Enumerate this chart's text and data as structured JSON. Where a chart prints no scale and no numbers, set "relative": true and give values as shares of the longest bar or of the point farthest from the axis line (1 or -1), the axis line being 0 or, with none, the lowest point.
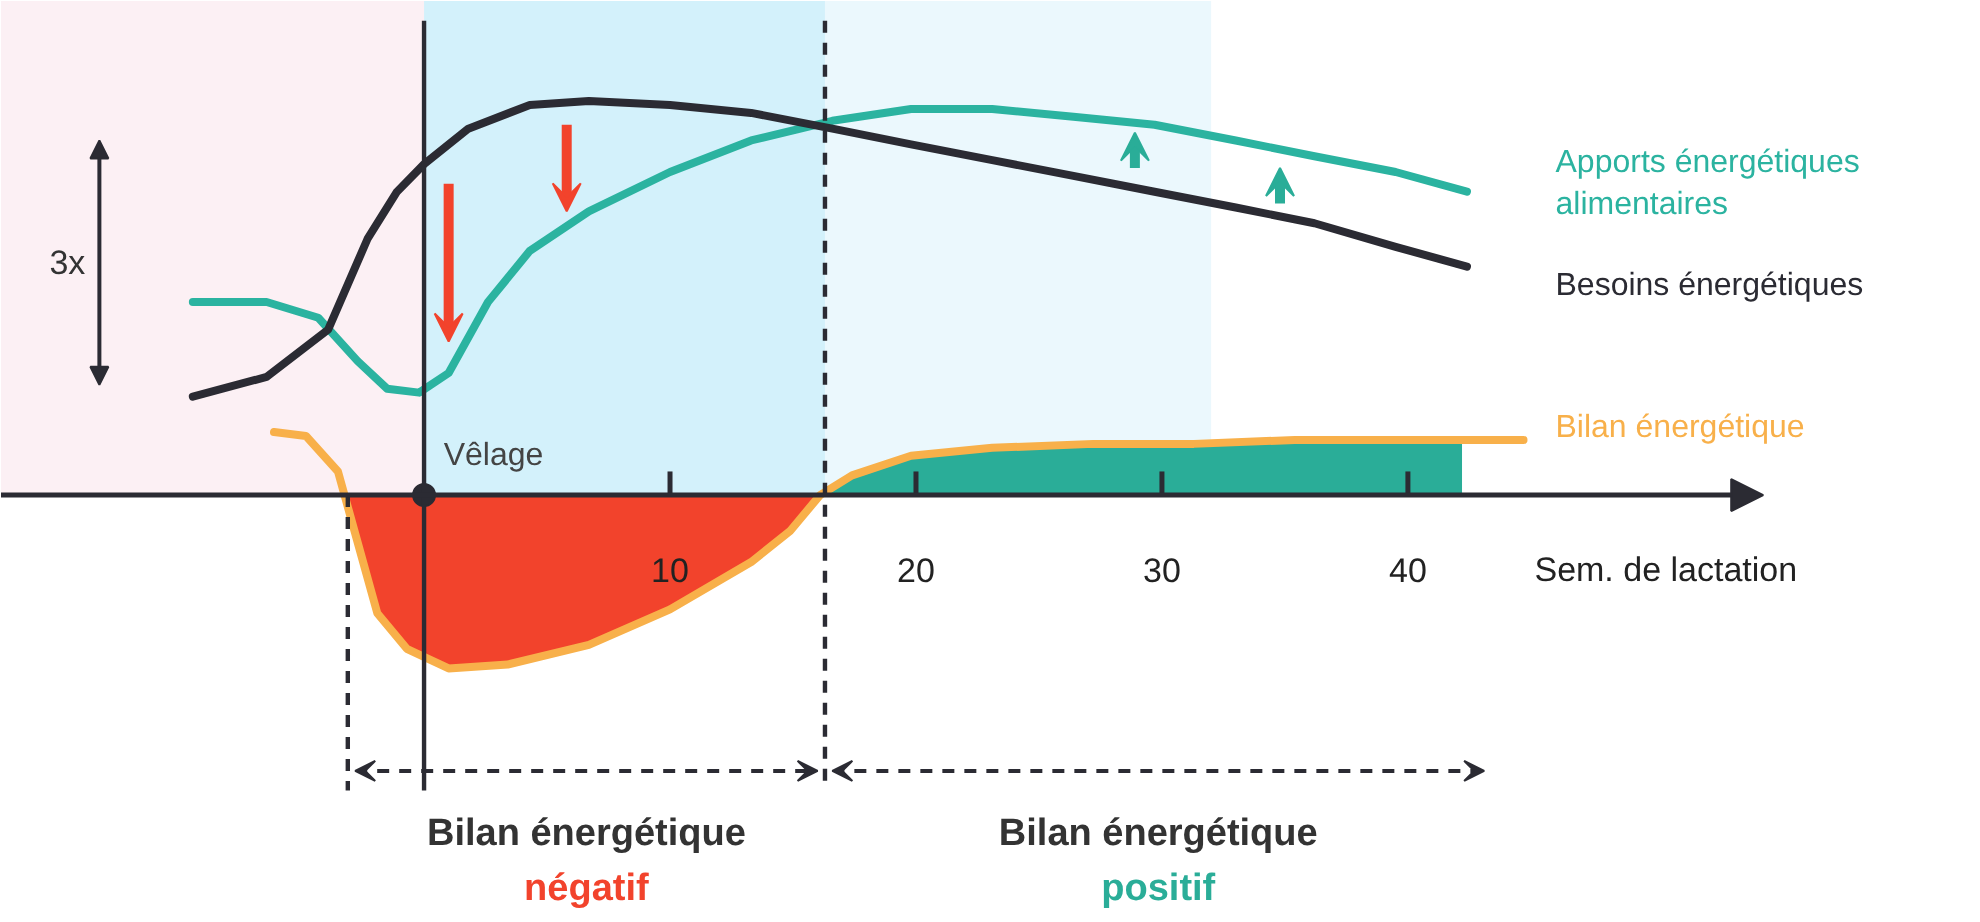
{
  "chart_data": {
    "type": "line",
    "relative": true,
    "xlabel": "Sem. de lactation",
    "xlim": [
      -17.2,
      63.3
    ],
    "xticks": [
      10,
      20,
      30,
      40
    ],
    "grid": false,
    "series": [
      {
        "name": "Apports énergétiques alimentaires",
        "color": "#2bb3a0",
        "x": [
          -9.4,
          -6.4,
          -4.3,
          -2.7,
          -1.5,
          -0.2,
          1.0,
          2.6,
          4.3,
          6.7,
          10,
          13.3,
          16.6,
          19.8,
          23.1,
          26.4,
          29.7,
          33,
          36.2,
          39.5,
          42.4
        ],
        "values": [
          0.49,
          0.49,
          0.45,
          0.34,
          0.27,
          0.26,
          0.31,
          0.49,
          0.62,
          0.72,
          0.82,
          0.9,
          0.95,
          0.98,
          0.98,
          0.96,
          0.94,
          0.9,
          0.86,
          0.82,
          0.77
        ]
      },
      {
        "name": "Besoins énergétiques",
        "color": "#2b2b33",
        "x": [
          -9.4,
          -6.4,
          -3.9,
          -2.3,
          -1.1,
          0,
          1.8,
          4.3,
          6.7,
          10,
          13.3,
          16.6,
          19.8,
          23.1,
          26.4,
          29.7,
          33,
          36.2,
          39.5,
          42.4
        ],
        "values": [
          0.25,
          0.3,
          0.42,
          0.65,
          0.77,
          0.84,
          0.93,
          0.99,
          1.0,
          0.99,
          0.97,
          0.93,
          0.89,
          0.85,
          0.81,
          0.77,
          0.73,
          0.69,
          0.63,
          0.58
        ]
      },
      {
        "name": "Bilan énergétique",
        "color": "#f8b04a",
        "x": [
          -6.1,
          -4.8,
          -3.5,
          -2.7,
          -1.9,
          -0.7,
          1.0,
          3.4,
          6.7,
          10,
          13.3,
          14.9,
          16.1,
          17.4,
          19.8,
          23.1,
          27.2,
          31.3,
          35.4,
          39.5,
          44.7
        ],
        "values": [
          0.16,
          0.15,
          0.06,
          -0.12,
          -0.3,
          -0.39,
          -0.44,
          -0.43,
          -0.38,
          -0.29,
          -0.17,
          -0.09,
          0,
          0.05,
          0.1,
          0.12,
          0.13,
          0.13,
          0.14,
          0.14,
          0.14
        ]
      },
      {
        "type": "area",
        "color": "#f2432c",
        "x": [
          -3.1,
          -2.7,
          -1.9,
          -0.7,
          1.0,
          3.4,
          6.7,
          10,
          13.3,
          14.9,
          16.1
        ],
        "values": [
          0,
          -0.12,
          -0.3,
          -0.39,
          -0.44,
          -0.43,
          -0.38,
          -0.29,
          -0.17,
          -0.09,
          0
        ]
      },
      {
        "type": "scatter",
        "color": "#2b2b33",
        "x": [
          0
        ],
        "values": [
          0
        ]
      },
      {
        "type": "area",
        "color": "#2aad98",
        "x": [
          16.1,
          17.4,
          19.8,
          23.1,
          27.2,
          31.3,
          35.4,
          39.5,
          42.2
        ],
        "values": [
          0,
          0.05,
          0.1,
          0.12,
          0.13,
          0.13,
          0.14,
          0.14,
          0.14
        ]
      }
    ],
    "ref_lines": [
      {
        "axis": "x",
        "value": 0,
        "label": "Vêlage"
      },
      {
        "axis": "x",
        "value": 16.3,
        "line_style": "dashed"
      },
      {
        "axis": "x",
        "value": -3.1,
        "line_style": "dashed"
      }
    ],
    "bands": [
      {
        "axis": "x",
        "from": -17.2,
        "to": 0,
        "color": "#fcf0f4"
      },
      {
        "axis": "x",
        "from": 0,
        "to": 16.3,
        "color": "#d3f1fb"
      },
      {
        "axis": "x",
        "from": 16.3,
        "to": 32,
        "color": "#ebf8fd"
      }
    ],
    "annotations": [
      "3x",
      "Bilan énergétique",
      "négatif",
      "Bilan énergétique",
      "positif"
    ]
  }
}
